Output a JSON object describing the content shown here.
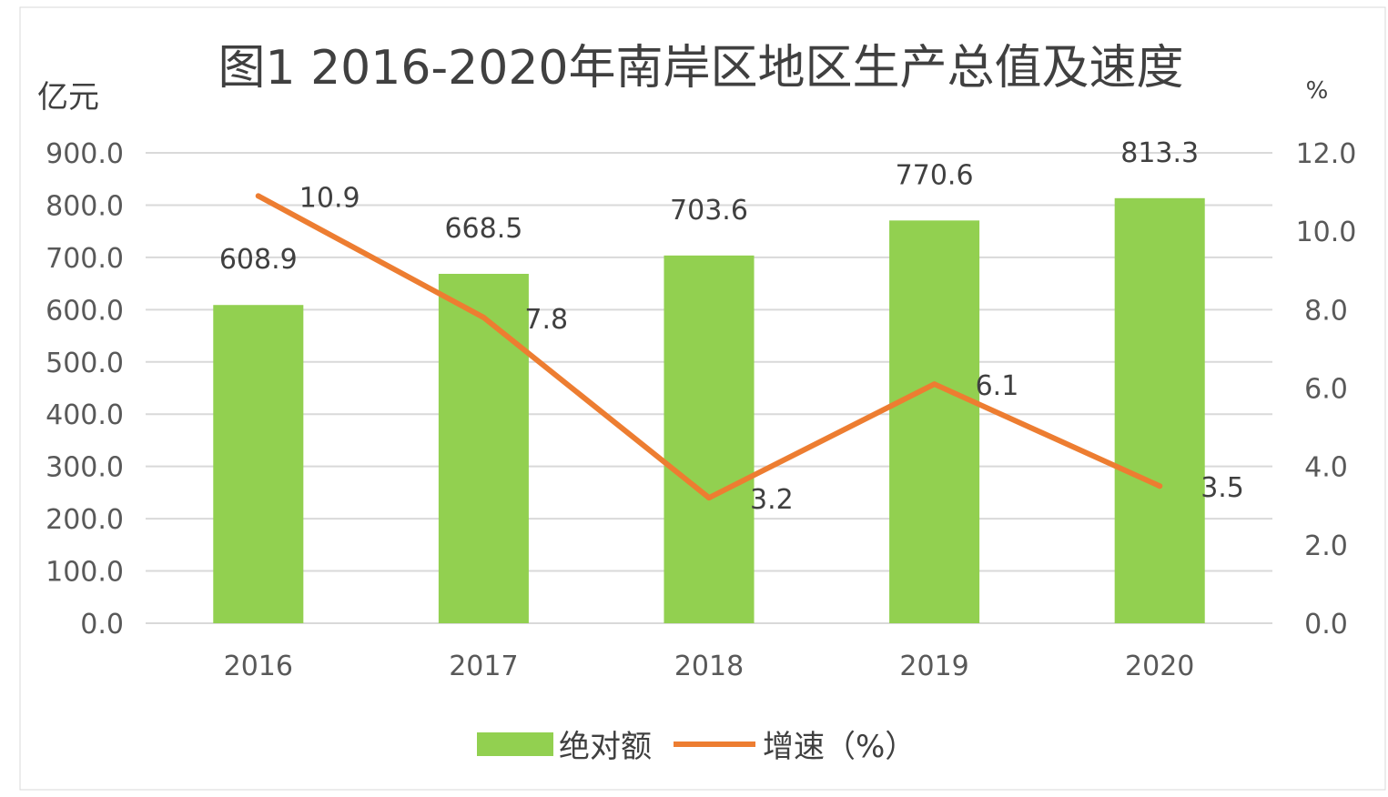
{
  "chart_data": {
    "type": "bar",
    "title": "图1 2016-2020年南岸区地区生产总值及速度",
    "categories": [
      "2016",
      "2017",
      "2018",
      "2019",
      "2020"
    ],
    "y_left": {
      "unit_label": "亿元",
      "range": [
        0,
        900
      ],
      "ticks": [
        "0.0",
        "100.0",
        "200.0",
        "300.0",
        "400.0",
        "500.0",
        "600.0",
        "700.0",
        "800.0",
        "900.0"
      ]
    },
    "y_right": {
      "unit_label": "%",
      "range": [
        0,
        12
      ],
      "ticks": [
        "0.0",
        "2.0",
        "4.0",
        "6.0",
        "8.0",
        "10.0",
        "12.0"
      ]
    },
    "series": [
      {
        "name": "绝对额",
        "type": "bar",
        "axis": "left",
        "color": "#92d050",
        "values": [
          608.9,
          668.5,
          703.6,
          770.6,
          813.3
        ],
        "labels": [
          "608.9",
          "668.5",
          "703.6",
          "770.6",
          "813.3"
        ]
      },
      {
        "name": "增速（%）",
        "type": "line",
        "axis": "right",
        "color": "#ed7d31",
        "values": [
          10.9,
          7.8,
          3.2,
          6.1,
          3.5
        ],
        "labels": [
          "10.9",
          "7.8",
          "3.2",
          "6.1",
          "3.5"
        ]
      }
    ],
    "grid": true,
    "legend_position": "bottom"
  }
}
